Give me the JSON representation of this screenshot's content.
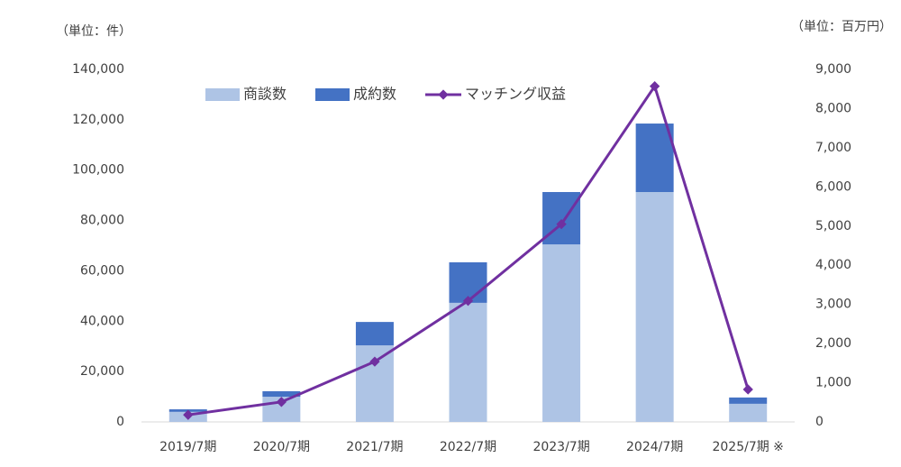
{
  "chart_data": {
    "type": "bar-line",
    "y_unit_label": "（単位：件）",
    "y2_unit_label": "（単位：百万円）",
    "categories": [
      "2019/7期",
      "2020/7期",
      "2021/7期",
      "2022/7期",
      "2023/7期",
      "2024/7期",
      "2025/7期 ※"
    ],
    "series": [
      {
        "name": "商談数",
        "color": "#aec4e5",
        "type": "bar",
        "values": [
          4000,
          10000,
          30400,
          47300,
          70500,
          91300,
          7200
        ]
      },
      {
        "name": "成約数",
        "color": "#4472c4",
        "type": "bar",
        "values": [
          1000,
          2200,
          9300,
          16100,
          20800,
          27200,
          2500
        ]
      },
      {
        "name": "マッチング収益",
        "color": "#7030a0",
        "type": "line",
        "axis": "y2",
        "values": [
          180,
          510,
          1540,
          3090,
          5050,
          8570,
          830
        ]
      }
    ],
    "ylim": [
      0,
      140000
    ],
    "yticks": [
      0,
      {
        "value": 20000,
        "label": "20,000"
      },
      {
        "value": 40000,
        "label": "40,000"
      },
      {
        "value": 60000,
        "label": "60,000"
      },
      {
        "value": 80000,
        "label": "80,000"
      },
      {
        "value": 100000,
        "label": "100,000"
      },
      {
        "value": 120000,
        "label": "120,000"
      },
      {
        "value": 140000,
        "label": "140,000"
      }
    ],
    "y2lim": [
      0,
      9000
    ],
    "y2ticks": [
      0,
      {
        "value": 1000,
        "label": "1,000"
      },
      {
        "value": 2000,
        "label": "2,000"
      },
      {
        "value": 3000,
        "label": "3,000"
      },
      {
        "value": 4000,
        "label": "4,000"
      },
      {
        "value": 5000,
        "label": "5,000"
      },
      {
        "value": 6000,
        "label": "6,000"
      },
      {
        "value": 7000,
        "label": "7,000"
      },
      {
        "value": 8000,
        "label": "8,000"
      },
      {
        "value": 9000,
        "label": "9,000"
      }
    ],
    "grid": false
  }
}
